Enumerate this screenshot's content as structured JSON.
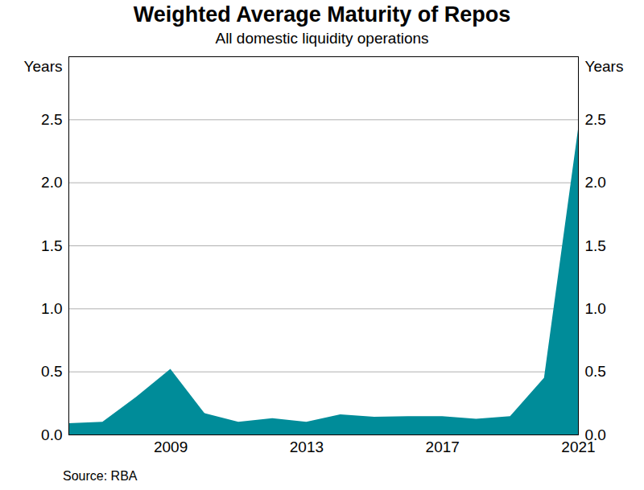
{
  "chart_data": {
    "type": "area",
    "title": "Weighted Average Maturity of Repos",
    "subtitle": "All domestic liquidity operations",
    "source": "Source: RBA",
    "ylabel": "Years",
    "y2label": "Years",
    "x": [
      2006,
      2007,
      2008,
      2009,
      2010,
      2011,
      2012,
      2013,
      2014,
      2015,
      2016,
      2017,
      2018,
      2019,
      2020,
      2021
    ],
    "values": [
      0.09,
      0.1,
      0.3,
      0.52,
      0.17,
      0.1,
      0.13,
      0.1,
      0.16,
      0.14,
      0.145,
      0.145,
      0.125,
      0.145,
      0.45,
      2.42
    ],
    "color": "#008c99",
    "xlim": [
      2006,
      2021
    ],
    "xticks": [
      2009,
      2013,
      2017,
      2021
    ],
    "ylim": [
      0,
      3
    ],
    "yticks": [
      {
        "value": 0,
        "label": "0.0"
      },
      {
        "value": 0.5,
        "label": "0.5"
      },
      {
        "value": 1,
        "label": "1.0"
      },
      {
        "value": 1.5,
        "label": "1.5"
      },
      {
        "value": 2,
        "label": "2.0"
      },
      {
        "value": 2.5,
        "label": "2.5"
      }
    ],
    "y2lim": [
      0,
      3
    ],
    "y2ticks": [
      {
        "value": 0,
        "label": "0.0"
      },
      {
        "value": 0.5,
        "label": "0.5"
      },
      {
        "value": 1,
        "label": "1.0"
      },
      {
        "value": 1.5,
        "label": "1.5"
      },
      {
        "value": 2,
        "label": "2.0"
      },
      {
        "value": 2.5,
        "label": "2.5"
      }
    ],
    "grid": true
  }
}
